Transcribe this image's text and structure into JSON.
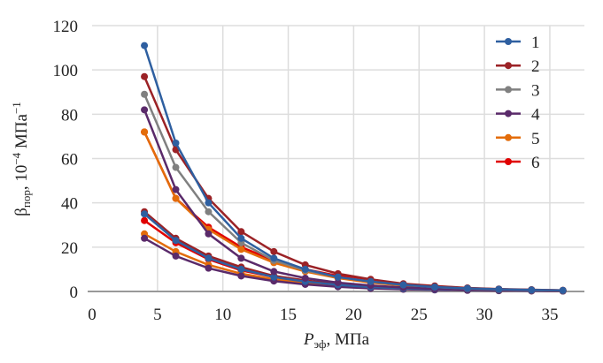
{
  "chart_data": {
    "type": "line",
    "title": "",
    "xlabel_main": "P",
    "xlabel_sub": "эф",
    "xlabel_units": ", МПа",
    "ylabel_main": "β",
    "ylabel_sub": "пор",
    "ylabel_units": ", 10",
    "ylabel_exp1": "−4",
    "ylabel_units2": " МПа",
    "ylabel_exp2": "−1",
    "xlim": [
      0,
      40
    ],
    "ylim": [
      0,
      120
    ],
    "xticks": [
      0,
      5,
      10,
      15,
      20,
      25,
      30,
      35
    ],
    "yticks": [
      0,
      20,
      40,
      60,
      80,
      100,
      120
    ],
    "grid": true,
    "legend_position": "top-right",
    "x": [
      4.0,
      6.4,
      8.9,
      11.4,
      13.9,
      16.3,
      18.8,
      21.3,
      23.8,
      26.2,
      28.7,
      31.1,
      33.6,
      36.0
    ],
    "series": [
      {
        "name": "1",
        "color": "#2e5fa0",
        "values_upper": [
          111,
          67,
          40,
          24,
          15,
          10,
          6.5,
          4.5,
          3,
          2,
          1.4,
          1,
          0.7,
          0.5
        ],
        "values_lower": [
          35,
          23,
          15,
          10,
          6.5,
          4.5,
          3,
          2,
          1.4,
          1,
          0.7,
          0.5,
          0.35,
          0.25
        ]
      },
      {
        "name": "2",
        "color": "#9b2226",
        "values_upper": [
          97,
          64,
          42,
          27,
          18,
          12,
          8,
          5.5,
          3.5,
          2.5,
          1.6,
          1.1,
          0.8,
          0.5
        ],
        "values_lower": [
          36,
          24,
          16,
          11,
          7,
          5,
          3.3,
          2.2,
          1.5,
          1,
          0.7,
          0.5,
          0.35,
          0.25
        ]
      },
      {
        "name": "3",
        "color": "#808080",
        "values_upper": [
          89,
          56,
          36,
          22,
          14,
          9.5,
          6.5,
          4.5,
          3,
          2,
          1.3,
          0.9,
          0.6,
          0.4
        ],
        "values_lower": [
          35,
          23.5,
          15.5,
          10.5,
          7,
          4.7,
          3.1,
          2.1,
          1.4,
          1,
          0.7,
          0.5,
          0.35,
          0.25
        ]
      },
      {
        "name": "4",
        "color": "#5a2a6a",
        "values_upper": [
          82,
          46,
          26,
          15,
          9,
          6,
          4,
          2.7,
          1.8,
          1.2,
          0.8,
          0.6,
          0.4,
          0.3
        ],
        "values_lower": [
          24,
          16,
          10.5,
          7,
          4.7,
          3.2,
          2.1,
          1.4,
          1,
          0.7,
          0.5,
          0.35,
          0.25,
          0.2
        ]
      },
      {
        "name": "5",
        "color": "#e36c0a",
        "values_upper": [
          72,
          42,
          28,
          19,
          13,
          9,
          6,
          4,
          2.7,
          1.8,
          1.2,
          0.8,
          0.6,
          0.4
        ],
        "values_lower": [
          26,
          18,
          12,
          8,
          5.5,
          3.7,
          2.5,
          1.7,
          1.1,
          0.8,
          0.55,
          0.4,
          0.3,
          0.2
        ]
      },
      {
        "name": "6",
        "color": "#e00000",
        "values_upper": [
          72,
          42,
          29,
          20,
          14,
          10,
          7,
          5,
          3.3,
          2.2,
          1.5,
          1,
          0.7,
          0.5
        ],
        "values_lower": [
          32,
          22,
          14.5,
          9.5,
          6.5,
          4.3,
          2.9,
          2,
          1.3,
          0.9,
          0.6,
          0.45,
          0.3,
          0.2
        ]
      }
    ]
  }
}
